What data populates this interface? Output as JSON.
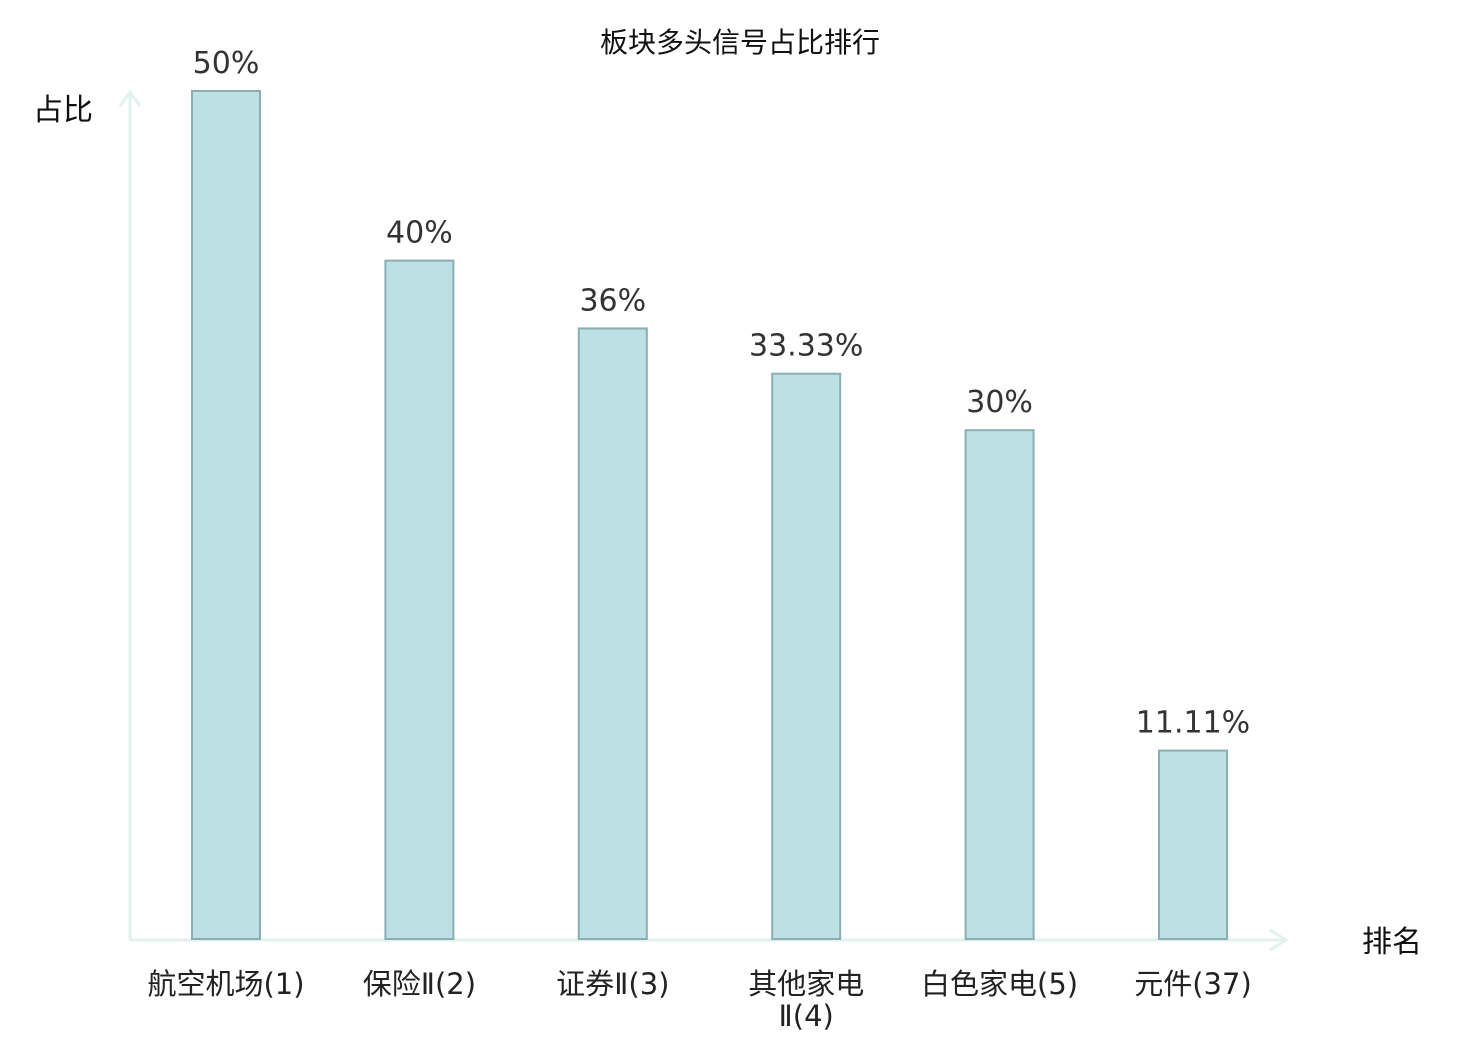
{
  "chart_data": {
    "type": "bar",
    "title": "板块多头信号占比排行",
    "ylabel": "占比",
    "xlabel": "排名",
    "categories": [
      "航空机场(1)",
      "保险Ⅱ(2)",
      "证券Ⅱ(3)",
      "其他家电Ⅱ(4)",
      "白色家电(5)",
      "元件(37)"
    ],
    "category_lines": [
      [
        "航空机场(1)"
      ],
      [
        "保险Ⅱ(2)"
      ],
      [
        "证券Ⅱ(3)"
      ],
      [
        "其他家电",
        "Ⅱ(4)"
      ],
      [
        "白色家电(5)"
      ],
      [
        "元件(37)"
      ]
    ],
    "values": [
      50,
      40,
      36,
      33.33,
      30,
      11.11
    ],
    "value_labels": [
      "50%",
      "40%",
      "36%",
      "33.33%",
      "30%",
      "11.11%"
    ],
    "highlight_index": 5,
    "ylim": [
      0,
      50
    ],
    "grid": false,
    "legend": "none",
    "colors": {
      "bar_fill": "#bce0e3",
      "bar_stroke": "#8aaeb1",
      "axis": "#e2f2ef",
      "highlight_text": "#e8191c",
      "label_text": "#333333"
    }
  }
}
